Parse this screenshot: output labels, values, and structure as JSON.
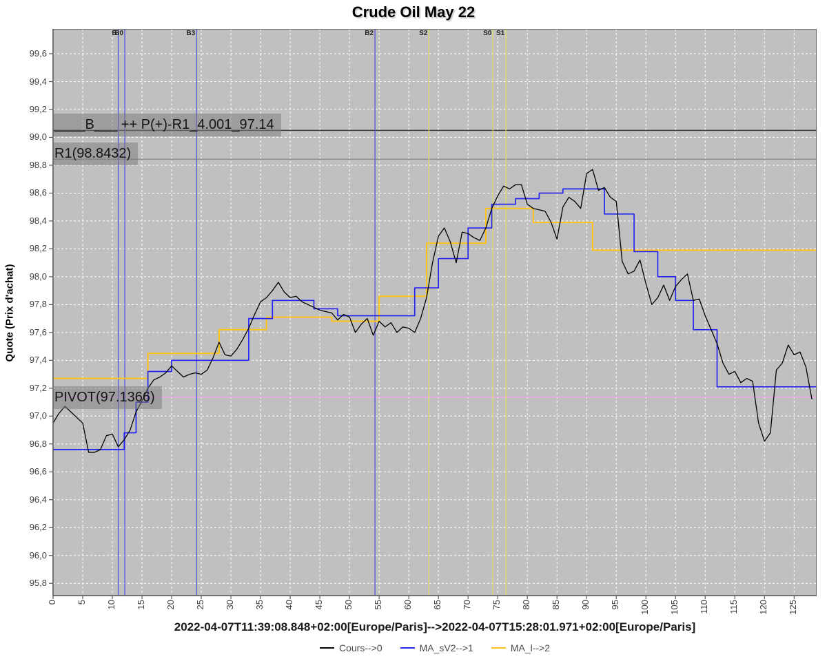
{
  "title": "Crude Oil May 22",
  "y_axis": {
    "label": "Quote (Prix d'achat)",
    "tick_labels": [
      "95,8",
      "96,0",
      "96,2",
      "96,4",
      "96,6",
      "96,8",
      "97,0",
      "97,2",
      "97,4",
      "97,6",
      "97,8",
      "98,0",
      "98,2",
      "98,4",
      "98,6",
      "98,8",
      "99,0",
      "99,2",
      "99,4",
      "99,6"
    ],
    "tick_values": [
      95.8,
      96.0,
      96.2,
      96.4,
      96.6,
      96.8,
      97.0,
      97.2,
      97.4,
      97.6,
      97.8,
      98.0,
      98.2,
      98.4,
      98.6,
      98.8,
      99.0,
      99.2,
      99.4,
      99.6
    ]
  },
  "x_axis": {
    "label": "2022-04-07T11:39:08.848+02:00[Europe/Paris]-->2022-04-07T15:28:01.971+02:00[Europe/Paris]",
    "tick_labels": [
      "0",
      "5",
      "10",
      "15",
      "20",
      "25",
      "30",
      "35",
      "40",
      "45",
      "50",
      "55",
      "60",
      "65",
      "70",
      "75",
      "80",
      "85",
      "90",
      "95",
      "100",
      "105",
      "110",
      "115",
      "120",
      "125"
    ],
    "tick_values": [
      0,
      5,
      10,
      15,
      20,
      25,
      30,
      35,
      40,
      45,
      50,
      55,
      60,
      65,
      70,
      75,
      80,
      85,
      90,
      95,
      100,
      105,
      110,
      115,
      120,
      125
    ]
  },
  "chart_data": {
    "type": "line",
    "title": "Crude Oil May 22",
    "xlabel": "2022-04-07T11:39:08.848+02:00[Europe/Paris]-->2022-04-07T15:28:01.971+02:00[Europe/Paris]",
    "ylabel": "Quote (Prix d'achat)",
    "xlim": [
      0,
      128.8
    ],
    "ylim": [
      95.712,
      99.778
    ],
    "grid": true,
    "legend_position": "bottom",
    "plot_background": "#c0c0c0",
    "gridline_color": "#ffffff",
    "series": [
      {
        "name": "Cours-->0",
        "color": "#000000",
        "style": "line",
        "values": [
          96.95,
          97.02,
          97.07,
          97.03,
          96.99,
          96.95,
          96.74,
          96.74,
          96.76,
          96.86,
          96.87,
          96.78,
          96.83,
          96.9,
          97.03,
          97.11,
          97.2,
          97.26,
          97.28,
          97.31,
          97.36,
          97.32,
          97.28,
          97.3,
          97.31,
          97.3,
          97.33,
          97.42,
          97.53,
          97.44,
          97.43,
          97.48,
          97.55,
          97.63,
          97.73,
          97.82,
          97.85,
          97.9,
          97.96,
          97.89,
          97.85,
          97.86,
          97.82,
          97.8,
          97.78,
          97.76,
          97.75,
          97.74,
          97.69,
          97.73,
          97.71,
          97.6,
          97.66,
          97.7,
          97.58,
          97.68,
          97.64,
          97.67,
          97.6,
          97.64,
          97.63,
          97.6,
          97.7,
          97.85,
          98.1,
          98.29,
          98.35,
          98.25,
          98.1,
          98.32,
          98.31,
          98.28,
          98.26,
          98.35,
          98.49,
          98.58,
          98.65,
          98.63,
          98.66,
          98.66,
          98.52,
          98.49,
          98.48,
          98.47,
          98.39,
          98.27,
          98.5,
          98.57,
          98.54,
          98.49,
          98.74,
          98.77,
          98.62,
          98.64,
          98.57,
          98.54,
          98.11,
          98.02,
          98.04,
          98.12,
          97.95,
          97.8,
          97.85,
          97.94,
          97.83,
          97.93,
          97.98,
          98.02,
          97.83,
          97.84,
          97.72,
          97.62,
          97.52,
          97.38,
          97.3,
          97.32,
          97.24,
          97.27,
          97.25,
          96.95,
          96.82,
          96.88,
          97.33,
          97.38,
          97.51,
          97.44,
          97.46,
          97.35,
          97.12
        ]
      },
      {
        "name": "MA_sV2-->1",
        "color": "#2424f0",
        "style": "step",
        "values": [
          96.76,
          96.76,
          96.76,
          96.76,
          96.76,
          96.76,
          96.76,
          96.76,
          96.76,
          96.76,
          96.76,
          96.76,
          96.88,
          96.88,
          97.1,
          97.1,
          97.32,
          97.32,
          97.32,
          97.32,
          97.4,
          97.4,
          97.4,
          97.4,
          97.4,
          97.4,
          97.4,
          97.4,
          97.4,
          97.4,
          97.4,
          97.4,
          97.4,
          97.7,
          97.7,
          97.7,
          97.7,
          97.83,
          97.83,
          97.83,
          97.83,
          97.83,
          97.83,
          97.83,
          97.77,
          97.77,
          97.77,
          97.77,
          97.72,
          97.72,
          97.72,
          97.72,
          97.72,
          97.72,
          97.72,
          97.72,
          97.72,
          97.72,
          97.72,
          97.72,
          97.72,
          97.92,
          97.92,
          97.92,
          97.92,
          98.13,
          98.13,
          98.13,
          98.13,
          98.13,
          98.35,
          98.35,
          98.35,
          98.35,
          98.52,
          98.52,
          98.52,
          98.52,
          98.56,
          98.56,
          98.56,
          98.56,
          98.6,
          98.6,
          98.6,
          98.6,
          98.63,
          98.63,
          98.63,
          98.63,
          98.63,
          98.63,
          98.63,
          98.45,
          98.45,
          98.45,
          98.45,
          98.45,
          98.18,
          98.18,
          98.18,
          98.18,
          98.0,
          98.0,
          98.0,
          97.83,
          97.83,
          97.83,
          97.62,
          97.62,
          97.62,
          97.62,
          97.21,
          97.21,
          97.21,
          97.21,
          97.21,
          97.21,
          97.21,
          97.21,
          97.21,
          97.21,
          97.21,
          97.21,
          97.21,
          97.21,
          97.21,
          97.21,
          97.21
        ]
      },
      {
        "name": "MA_l-->2",
        "color": "#ffc419",
        "style": "step",
        "values": [
          97.27,
          97.27,
          97.27,
          97.27,
          97.27,
          97.27,
          97.27,
          97.27,
          97.27,
          97.27,
          97.27,
          97.27,
          97.27,
          97.27,
          97.27,
          97.27,
          97.45,
          97.45,
          97.45,
          97.45,
          97.45,
          97.45,
          97.45,
          97.45,
          97.45,
          97.45,
          97.45,
          97.45,
          97.62,
          97.62,
          97.62,
          97.62,
          97.62,
          97.62,
          97.62,
          97.62,
          97.71,
          97.71,
          97.71,
          97.71,
          97.71,
          97.71,
          97.71,
          97.71,
          97.71,
          97.71,
          97.71,
          97.68,
          97.68,
          97.68,
          97.68,
          97.68,
          97.68,
          97.68,
          97.68,
          97.86,
          97.86,
          97.86,
          97.86,
          97.86,
          97.86,
          97.86,
          97.86,
          98.24,
          98.24,
          98.24,
          98.24,
          98.24,
          98.24,
          98.24,
          98.24,
          98.24,
          98.24,
          98.49,
          98.49,
          98.49,
          98.49,
          98.49,
          98.49,
          98.49,
          98.49,
          98.39,
          98.39,
          98.39,
          98.39,
          98.39,
          98.39,
          98.39,
          98.39,
          98.39,
          98.39,
          98.19,
          98.19,
          98.19,
          98.19,
          98.19,
          98.19,
          98.19,
          98.19,
          98.19,
          98.19,
          98.19,
          98.19,
          98.19,
          98.19,
          98.19,
          98.19,
          98.19,
          98.19,
          98.19,
          98.19,
          98.19,
          98.19,
          98.19,
          98.19,
          98.19,
          98.19,
          98.19,
          98.19,
          98.19,
          98.19,
          98.19,
          98.19,
          98.19,
          98.19,
          98.19,
          98.19,
          98.19,
          98.19
        ]
      }
    ],
    "vertical_markers": [
      {
        "label": "B",
        "x": 11.0,
        "type": "buy"
      },
      {
        "label": "B0",
        "x": 12.1,
        "type": "buy"
      },
      {
        "label": "B3",
        "x": 24.2,
        "type": "buy"
      },
      {
        "label": "B2",
        "x": 54.3,
        "type": "buy"
      },
      {
        "label": "S2",
        "x": 63.4,
        "type": "sell"
      },
      {
        "label": "S0",
        "x": 74.2,
        "type": "sell"
      },
      {
        "label": "S1",
        "x": 76.4,
        "type": "sell"
      }
    ],
    "marker_colors": {
      "buy": "#5b5be0",
      "sell": "#dcdc6e"
    },
    "horizontal_markers": [
      {
        "value": 99.05,
        "color": "#3c3c3c"
      },
      {
        "value": 98.8432,
        "color": "#8f8f8f"
      },
      {
        "value": 97.1366,
        "color": "#f2a4f0"
      }
    ],
    "annotations": [
      {
        "text": "____B___ ++ P(+)-R1_4.001_97.14",
        "value": 99.09
      },
      {
        "text": "R1(98.8432)",
        "value": 98.885
      },
      {
        "text": "PIVOT(97.1366)",
        "value": 97.137
      }
    ]
  },
  "legend": {
    "items": [
      "Cours-->0",
      "MA_sV2-->1",
      "MA_l-->2"
    ]
  }
}
